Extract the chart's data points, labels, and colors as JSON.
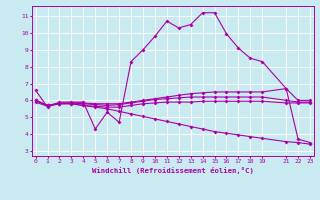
{
  "xlabel": "Windchill (Refroidissement éolien,°C)",
  "bg_color": "#c8eaf0",
  "line_color": "#aa00aa",
  "grid_color": "#ffffff",
  "x_ticks": [
    0,
    1,
    2,
    3,
    4,
    5,
    6,
    7,
    8,
    9,
    10,
    11,
    12,
    13,
    14,
    15,
    16,
    17,
    18,
    19,
    21,
    22,
    23
  ],
  "y_ticks": [
    3,
    4,
    5,
    6,
    7,
    8,
    9,
    10,
    11
  ],
  "xlim": [
    -0.3,
    23.3
  ],
  "ylim": [
    2.7,
    11.6
  ],
  "series": [
    {
      "x": [
        0,
        1,
        2,
        3,
        4,
        5,
        6,
        7,
        8,
        9,
        10,
        11,
        12,
        13,
        14,
        15,
        16,
        17,
        18,
        19,
        21,
        22,
        23
      ],
      "y": [
        6.6,
        5.6,
        5.9,
        5.9,
        5.9,
        4.3,
        5.3,
        4.7,
        8.3,
        9.0,
        9.8,
        10.7,
        10.3,
        10.5,
        11.2,
        11.2,
        9.95,
        9.1,
        8.5,
        8.3,
        6.7,
        3.7,
        3.5
      ],
      "marker": true
    },
    {
      "x": [
        0,
        1,
        2,
        3,
        4,
        5,
        6,
        7,
        8,
        9,
        10,
        11,
        12,
        13,
        14,
        15,
        16,
        17,
        18,
        19,
        21,
        22,
        23
      ],
      "y": [
        6.0,
        5.7,
        5.8,
        5.85,
        5.85,
        5.8,
        5.8,
        5.8,
        5.9,
        6.0,
        6.1,
        6.2,
        6.3,
        6.4,
        6.45,
        6.5,
        6.5,
        6.5,
        6.5,
        6.5,
        6.7,
        6.0,
        6.0
      ],
      "marker": true
    },
    {
      "x": [
        0,
        1,
        2,
        3,
        4,
        5,
        6,
        7,
        8,
        9,
        10,
        11,
        12,
        13,
        14,
        15,
        16,
        17,
        18,
        19,
        21,
        22,
        23
      ],
      "y": [
        6.0,
        5.7,
        5.85,
        5.85,
        5.8,
        5.75,
        5.7,
        5.75,
        5.85,
        5.95,
        6.05,
        6.1,
        6.15,
        6.2,
        6.2,
        6.2,
        6.2,
        6.2,
        6.2,
        6.2,
        6.0,
        5.9,
        5.9
      ],
      "marker": true
    },
    {
      "x": [
        0,
        1,
        2,
        3,
        4,
        5,
        6,
        7,
        8,
        9,
        10,
        11,
        12,
        13,
        14,
        15,
        16,
        17,
        18,
        19,
        21,
        22,
        23
      ],
      "y": [
        5.9,
        5.65,
        5.8,
        5.8,
        5.7,
        5.65,
        5.6,
        5.6,
        5.7,
        5.8,
        5.85,
        5.9,
        5.9,
        5.9,
        5.95,
        5.95,
        5.95,
        5.95,
        5.95,
        5.95,
        5.85,
        5.85,
        5.85
      ],
      "marker": true
    },
    {
      "x": [
        0,
        1,
        2,
        3,
        4,
        5,
        6,
        7,
        8,
        9,
        10,
        11,
        12,
        13,
        14,
        15,
        16,
        17,
        18,
        19,
        21,
        22,
        23
      ],
      "y": [
        6.0,
        5.7,
        5.8,
        5.8,
        5.7,
        5.6,
        5.5,
        5.35,
        5.2,
        5.05,
        4.9,
        4.75,
        4.6,
        4.45,
        4.3,
        4.15,
        4.05,
        3.95,
        3.85,
        3.75,
        3.55,
        3.5,
        3.4
      ],
      "marker": true
    }
  ]
}
